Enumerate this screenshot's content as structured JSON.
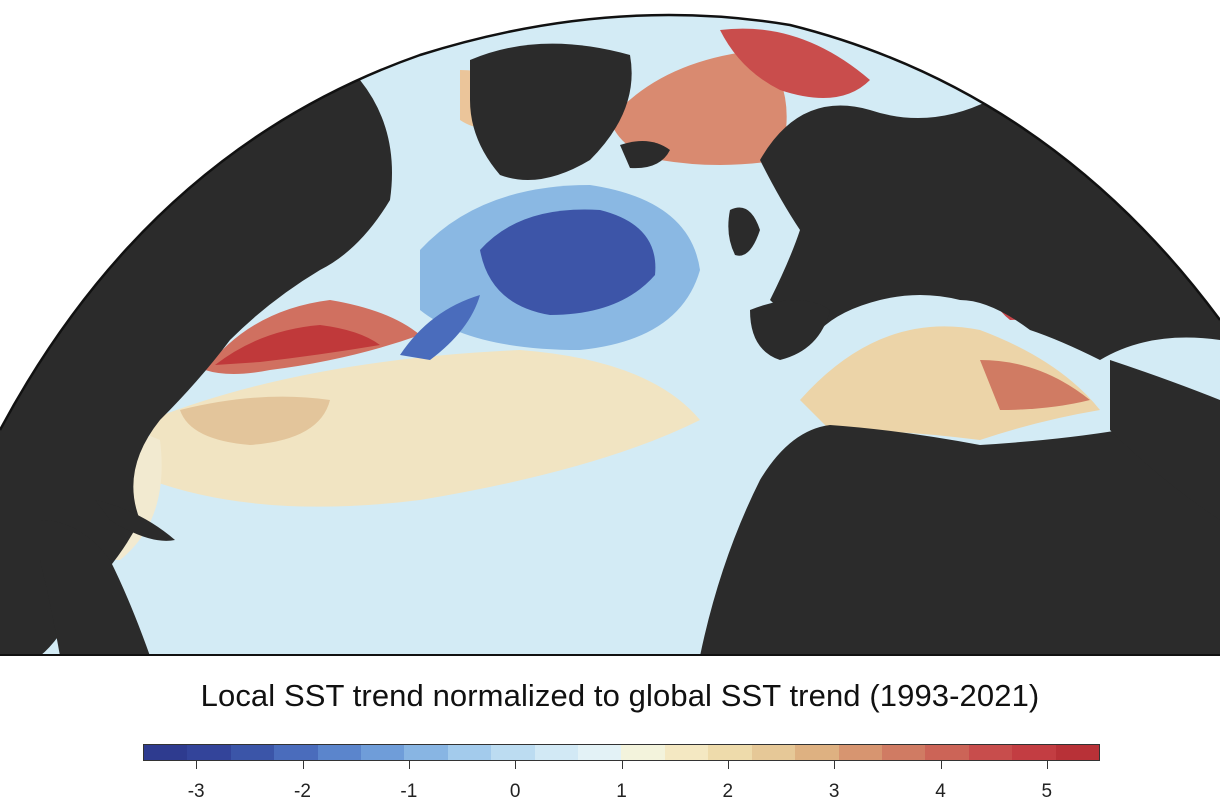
{
  "map": {
    "projection": "orthographic-hemisphere",
    "region": "North Atlantic Ocean",
    "colors": {
      "land": "#2b2b2b",
      "background": "#ffffff",
      "outline": "#111111"
    }
  },
  "colorbar": {
    "title": "Local SST trend normalized to global SST trend (1993-2021)",
    "min": -3.5,
    "max": 5.5,
    "ticks": [
      {
        "value": -3,
        "label": "-3"
      },
      {
        "value": -2,
        "label": "-2"
      },
      {
        "value": -1,
        "label": "-1"
      },
      {
        "value": 0,
        "label": "0"
      },
      {
        "value": 1,
        "label": "1"
      },
      {
        "value": 2,
        "label": "2"
      },
      {
        "value": 3,
        "label": "3"
      },
      {
        "value": 4,
        "label": "4"
      },
      {
        "value": 5,
        "label": "5"
      }
    ],
    "swatches": [
      "#2e3b8f",
      "#33449a",
      "#3b55a8",
      "#4a6cbc",
      "#5b85cc",
      "#6f9dd9",
      "#88b5e3",
      "#a3cbec",
      "#bcdcf1",
      "#d2e9f5",
      "#e3f2f6",
      "#f3f3dc",
      "#f4e8c2",
      "#eedbab",
      "#e6c897",
      "#deb181",
      "#d79570",
      "#d07b63",
      "#cc6457",
      "#c84d4c",
      "#c33d42",
      "#b83137"
    ]
  }
}
